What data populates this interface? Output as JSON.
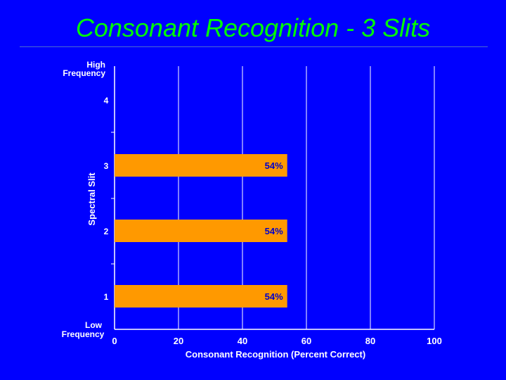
{
  "slide": {
    "title": "Consonant Recognition - 3 Slits"
  },
  "chart_data": {
    "type": "bar",
    "orientation": "horizontal",
    "title": "Consonant Recognition - 3 Slits",
    "xlabel": "Consonant Recognition (Percent Correct)",
    "ylabel": "Spectral Slit",
    "xlim": [
      0,
      100
    ],
    "x_ticks": [
      "0",
      "20",
      "40",
      "60",
      "80",
      "100"
    ],
    "y_ticks": [
      "1",
      "2",
      "3",
      "4"
    ],
    "y_top_label": [
      "High",
      "Frequency"
    ],
    "y_bottom_label": [
      "Low",
      "Frequency"
    ],
    "categories": [
      "1",
      "2",
      "3"
    ],
    "values": [
      54,
      54,
      54
    ],
    "data_labels": [
      "54%",
      "54%",
      "54%"
    ],
    "grid": true,
    "colors": {
      "background": "#0000ff",
      "bar": "#ff9900",
      "text": "#ffffff",
      "data_label": "#0000cc",
      "gridline": "#ffffff",
      "title": "#00ff00"
    }
  }
}
